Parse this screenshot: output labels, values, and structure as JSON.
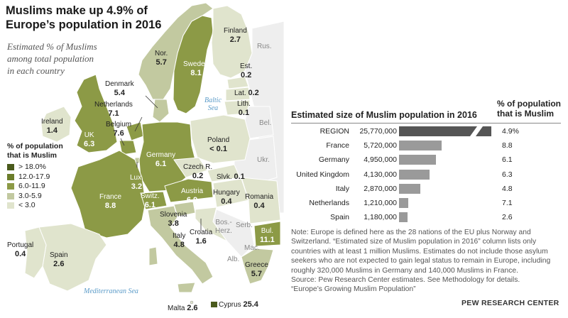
{
  "title_lines": [
    "Muslims make up 4.9% of",
    "Europe’s population in 2016"
  ],
  "subtitle_lines": [
    "Estimated % of Muslims",
    "among total population",
    "in each country"
  ],
  "legend": {
    "title_lines": [
      "% of population",
      "that is Muslim"
    ],
    "items": [
      {
        "label": "> 18.0%",
        "color": "#4a5a1c"
      },
      {
        "label": "12.0-17.9",
        "color": "#6b7d2a"
      },
      {
        "label": "6.0-11.9",
        "color": "#8c9a46"
      },
      {
        "label": "3.0-5.9",
        "color": "#c2c9a0"
      },
      {
        "label": "< 3.0",
        "color": "#e0e4cd"
      }
    ]
  },
  "map_labels": {
    "finland": {
      "name": "Finland",
      "value": "2.7"
    },
    "norway": {
      "name": "Nor.",
      "value": "5.7"
    },
    "sweden": {
      "name": "Sweden",
      "value": "8.1"
    },
    "russia": {
      "name": "Rus."
    },
    "estonia": {
      "name": "Est.",
      "value": "0.2"
    },
    "latvia": {
      "name": "Lat.",
      "value": "0.2"
    },
    "lithuania": {
      "name": "Lith.",
      "value": "0.1"
    },
    "denmark": {
      "name": "Denmark",
      "value": "5.4"
    },
    "netherlands": {
      "name": "Netherlands",
      "value": "7.1"
    },
    "ireland": {
      "name": "Ireland",
      "value": "1.4"
    },
    "uk": {
      "name": "UK",
      "value": "6.3"
    },
    "belgium": {
      "name": "Belgium",
      "value": "7.6"
    },
    "belarus": {
      "name": "Bel."
    },
    "poland": {
      "name": "Poland",
      "value": "< 0.1"
    },
    "germany": {
      "name": "Germany",
      "value": "6.1"
    },
    "ukraine": {
      "name": "Ukr."
    },
    "czech": {
      "name": "Czech R.",
      "value": "0.2"
    },
    "slovakia": {
      "name": "Slvk.",
      "value": "0.1"
    },
    "luxembourg": {
      "name": "Lux.",
      "value": "3.2"
    },
    "france": {
      "name": "France",
      "value": "8.8"
    },
    "switzerland": {
      "name": "Switz.",
      "value": "6.1"
    },
    "austria": {
      "name": "Austria",
      "value": "6.9"
    },
    "hungary": {
      "name": "Hungary",
      "value": "0.4"
    },
    "romania": {
      "name": "Romania",
      "value": "0.4"
    },
    "slovenia": {
      "name": "Slovenia",
      "value": "3.8"
    },
    "croatia": {
      "name": "Croatia",
      "value": "1.6"
    },
    "bosnia": {
      "name": "Bos.-Herz."
    },
    "serbia": {
      "name": "Serb."
    },
    "bulgaria": {
      "name": "Bul.",
      "value": "11.1"
    },
    "portugal": {
      "name": "Portugal",
      "value": "0.4"
    },
    "spain": {
      "name": "Spain",
      "value": "2.6"
    },
    "italy": {
      "name": "Italy",
      "value": "4.8"
    },
    "macedonia": {
      "name": "Mac."
    },
    "albania": {
      "name": "Alb."
    },
    "greece": {
      "name": "Greece",
      "value": "5.7"
    },
    "malta": {
      "name": "Malta",
      "value": "2.6"
    },
    "cyprus": {
      "name": "Cyprus",
      "value": "25.4"
    }
  },
  "seas": {
    "baltic_lines": [
      "Baltic",
      "Sea"
    ],
    "mediterranean": "Mediterranean Sea"
  },
  "chart_data": {
    "type": "bar",
    "title": "Estimated size of Muslim population in 2016",
    "pct_header_lines": [
      "% of population",
      "that is Muslim"
    ],
    "rows": [
      {
        "name": "REGION",
        "value": 25770000,
        "value_label": "25,770,000",
        "pct": "4.9%",
        "color": "#555555",
        "broken": true
      },
      {
        "name": "France",
        "value": 5720000,
        "value_label": "5,720,000",
        "pct": "8.8",
        "color": "#9a9a9a"
      },
      {
        "name": "Germany",
        "value": 4950000,
        "value_label": "4,950,000",
        "pct": "6.1",
        "color": "#9a9a9a"
      },
      {
        "name": "United Kingdom",
        "value": 4130000,
        "value_label": "4,130,000",
        "pct": "6.3",
        "color": "#9a9a9a"
      },
      {
        "name": "Italy",
        "value": 2870000,
        "value_label": "2,870,000",
        "pct": "4.8",
        "color": "#9a9a9a"
      },
      {
        "name": "Netherlands",
        "value": 1210000,
        "value_label": "1,210,000",
        "pct": "7.1",
        "color": "#9a9a9a"
      },
      {
        "name": "Spain",
        "value": 1180000,
        "value_label": "1,180,000",
        "pct": "2.6",
        "color": "#9a9a9a"
      }
    ]
  },
  "note_lines": [
    "Note: Europe is defined here as the 28 nations of the EU plus Norway and",
    "Switzerland. “Estimated size of Muslim population in 2016” column lists only",
    "countries with at least 1 million Muslims. Estimates do not include those asylum",
    "seekers who are not expected to gain legal status to remain in Europe, including",
    "roughly 320,000 Muslims in Germany and 140,000 Muslims in France.",
    "Source: Pew Research Center estimates. See Methodology for details.",
    "“Europe’s Growing Muslim Population”"
  ],
  "credit": "PEW RESEARCH CENTER"
}
